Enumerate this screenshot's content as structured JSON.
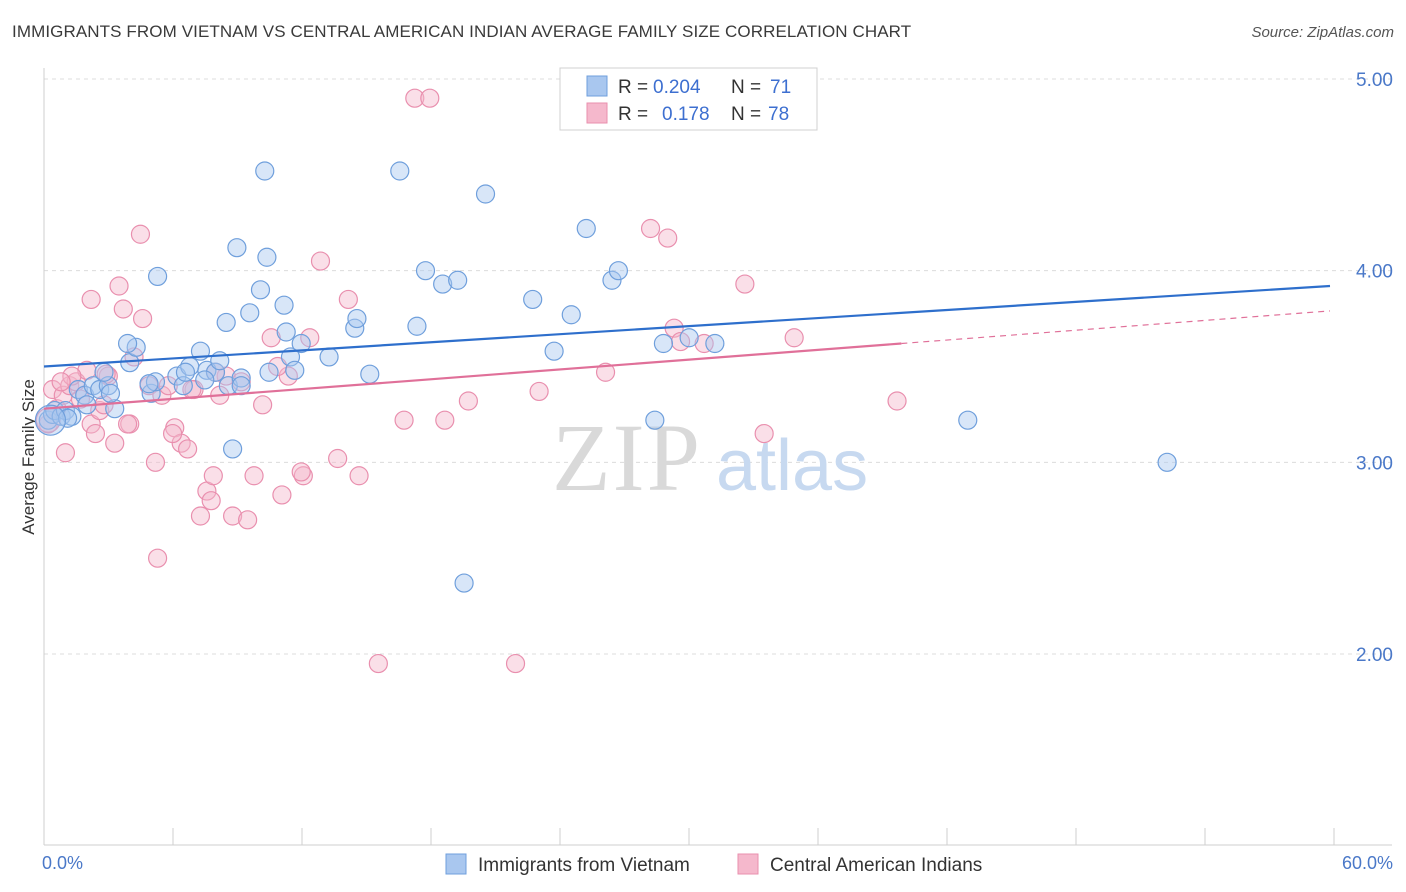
{
  "title": "IMMIGRANTS FROM VIETNAM VS CENTRAL AMERICAN INDIAN AVERAGE FAMILY SIZE CORRELATION CHART",
  "source": "Source: ZipAtlas.com",
  "watermark": {
    "zip": "ZIP",
    "atlas": "atlas"
  },
  "colors": {
    "series1_fill": "#a9c7ef",
    "series1_stroke": "#6f9fdc",
    "series1_line": "#2e6fcc",
    "series2_fill": "#f5b8cc",
    "series2_stroke": "#e98fae",
    "series2_line": "#e07099",
    "tick_text": "#4a78c8",
    "grid": "#dcdcdc"
  },
  "legend": {
    "rows": [
      {
        "r_label": "R =",
        "r_value": "0.204",
        "n_label": "N =",
        "n_value": "71"
      },
      {
        "r_label": "R =",
        "r_value": "0.178",
        "n_label": "N =",
        "n_value": "78"
      }
    ]
  },
  "chart_data": {
    "type": "scatter",
    "title": "IMMIGRANTS FROM VIETNAM VS CENTRAL AMERICAN INDIAN AVERAGE FAMILY SIZE CORRELATION CHART",
    "xlabel": "",
    "ylabel": "Average Family Size",
    "xlim": [
      0,
      60
    ],
    "ylim": [
      1.25,
      5.1
    ],
    "x_tick_labels": [
      "0.0%",
      "60.0%"
    ],
    "y_ticks": [
      2.0,
      3.0,
      4.0,
      5.0
    ],
    "y_tick_labels": [
      "2.00",
      "3.00",
      "4.00",
      "5.00"
    ],
    "grid": true,
    "legend_position": "top-center",
    "series": [
      {
        "name": "Immigrants from Vietnam",
        "R": 0.204,
        "N": 71,
        "trend": {
          "x0": 0,
          "y0": 3.5,
          "x1": 60,
          "y1": 3.92
        },
        "points": [
          [
            0.2,
            3.22
          ],
          [
            0.4,
            3.25
          ],
          [
            0.5,
            3.27
          ],
          [
            0.8,
            3.24
          ],
          [
            1.0,
            3.27
          ],
          [
            1.3,
            3.24
          ],
          [
            1.6,
            3.38
          ],
          [
            1.9,
            3.35
          ],
          [
            2.3,
            3.4
          ],
          [
            2.6,
            3.38
          ],
          [
            3.0,
            3.4
          ],
          [
            3.3,
            3.28
          ],
          [
            4.0,
            3.52
          ],
          [
            4.3,
            3.6
          ],
          [
            3.9,
            3.62
          ],
          [
            2.8,
            3.47
          ],
          [
            5.0,
            3.36
          ],
          [
            5.2,
            3.42
          ],
          [
            6.2,
            3.45
          ],
          [
            6.5,
            3.4
          ],
          [
            6.8,
            3.5
          ],
          [
            7.3,
            3.58
          ],
          [
            7.6,
            3.48
          ],
          [
            8.0,
            3.47
          ],
          [
            8.2,
            3.53
          ],
          [
            8.6,
            3.4
          ],
          [
            9.2,
            3.44
          ],
          [
            9.6,
            3.78
          ],
          [
            10.1,
            3.9
          ],
          [
            10.5,
            3.47
          ],
          [
            11.2,
            3.82
          ],
          [
            11.5,
            3.55
          ],
          [
            11.7,
            3.48
          ],
          [
            13.3,
            3.55
          ],
          [
            14.5,
            3.7
          ],
          [
            14.6,
            3.75
          ],
          [
            15.2,
            3.46
          ],
          [
            17.4,
            3.71
          ],
          [
            17.8,
            4.0
          ],
          [
            18.6,
            3.93
          ],
          [
            19.3,
            3.95
          ],
          [
            20.6,
            4.4
          ],
          [
            22.8,
            3.85
          ],
          [
            23.8,
            3.58
          ],
          [
            24.6,
            3.77
          ],
          [
            25.3,
            4.22
          ],
          [
            26.5,
            3.95
          ],
          [
            26.8,
            4.0
          ],
          [
            28.9,
            3.62
          ],
          [
            30.1,
            3.65
          ],
          [
            31.3,
            3.62
          ],
          [
            5.3,
            3.97
          ],
          [
            8.5,
            3.73
          ],
          [
            9.0,
            4.12
          ],
          [
            10.4,
            4.07
          ],
          [
            11.3,
            3.68
          ],
          [
            10.3,
            4.52
          ],
          [
            16.6,
            4.52
          ],
          [
            28.5,
            3.22
          ],
          [
            43.1,
            3.22
          ],
          [
            52.4,
            3.0
          ],
          [
            19.6,
            2.37
          ],
          [
            8.8,
            3.07
          ],
          [
            6.6,
            3.47
          ],
          [
            4.9,
            3.41
          ],
          [
            1.1,
            3.23
          ],
          [
            3.1,
            3.36
          ],
          [
            7.5,
            3.43
          ],
          [
            12.0,
            3.62
          ],
          [
            2.0,
            3.3
          ],
          [
            9.2,
            3.4
          ]
        ]
      },
      {
        "name": "Central American Indians",
        "R": 0.178,
        "N": 78,
        "trend": {
          "x0": 0,
          "y0": 3.28,
          "x1": 40,
          "y1": 3.62
        },
        "trend_dashed": {
          "x0": 40,
          "y0": 3.62,
          "x1": 60,
          "y1": 3.79
        },
        "points": [
          [
            0.2,
            3.2
          ],
          [
            0.4,
            3.38
          ],
          [
            0.6,
            3.28
          ],
          [
            0.9,
            3.35
          ],
          [
            1.2,
            3.4
          ],
          [
            1.5,
            3.42
          ],
          [
            1.7,
            3.33
          ],
          [
            2.0,
            3.48
          ],
          [
            2.2,
            3.2
          ],
          [
            2.4,
            3.15
          ],
          [
            2.6,
            3.27
          ],
          [
            2.8,
            3.3
          ],
          [
            3.0,
            3.45
          ],
          [
            3.3,
            3.1
          ],
          [
            3.5,
            3.92
          ],
          [
            3.7,
            3.8
          ],
          [
            4.0,
            3.2
          ],
          [
            4.2,
            3.55
          ],
          [
            4.6,
            3.75
          ],
          [
            4.9,
            3.4
          ],
          [
            5.2,
            3.0
          ],
          [
            5.5,
            3.35
          ],
          [
            5.8,
            3.4
          ],
          [
            6.1,
            3.18
          ],
          [
            6.4,
            3.1
          ],
          [
            6.7,
            3.07
          ],
          [
            7.0,
            3.38
          ],
          [
            7.3,
            2.72
          ],
          [
            7.6,
            2.85
          ],
          [
            7.9,
            2.93
          ],
          [
            8.2,
            3.35
          ],
          [
            8.5,
            3.45
          ],
          [
            8.8,
            2.72
          ],
          [
            9.2,
            3.42
          ],
          [
            9.8,
            2.93
          ],
          [
            10.2,
            3.3
          ],
          [
            10.6,
            3.65
          ],
          [
            11.1,
            2.83
          ],
          [
            11.4,
            3.45
          ],
          [
            12.1,
            2.93
          ],
          [
            12.4,
            3.65
          ],
          [
            12.9,
            4.05
          ],
          [
            13.7,
            3.02
          ],
          [
            14.2,
            3.85
          ],
          [
            14.7,
            2.93
          ],
          [
            15.6,
            1.95
          ],
          [
            16.8,
            3.22
          ],
          [
            17.3,
            4.9
          ],
          [
            18.0,
            4.9
          ],
          [
            18.7,
            3.22
          ],
          [
            19.8,
            3.32
          ],
          [
            22.0,
            1.95
          ],
          [
            23.1,
            3.37
          ],
          [
            26.2,
            3.47
          ],
          [
            28.3,
            4.22
          ],
          [
            29.1,
            4.17
          ],
          [
            29.4,
            3.7
          ],
          [
            29.7,
            3.63
          ],
          [
            30.8,
            3.62
          ],
          [
            32.7,
            3.93
          ],
          [
            33.6,
            3.15
          ],
          [
            35.0,
            3.65
          ],
          [
            39.8,
            3.32
          ],
          [
            4.5,
            4.19
          ],
          [
            2.2,
            3.85
          ],
          [
            1.0,
            3.05
          ],
          [
            6.9,
            3.38
          ],
          [
            9.5,
            2.7
          ],
          [
            5.3,
            2.5
          ],
          [
            3.9,
            3.2
          ],
          [
            1.3,
            3.45
          ],
          [
            8.0,
            3.47
          ],
          [
            0.8,
            3.42
          ],
          [
            2.9,
            3.46
          ],
          [
            12.0,
            2.95
          ],
          [
            6.0,
            3.15
          ],
          [
            7.8,
            2.8
          ],
          [
            10.9,
            3.5
          ]
        ]
      }
    ]
  }
}
